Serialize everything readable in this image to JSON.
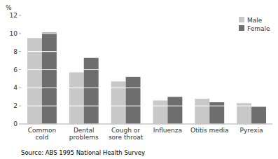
{
  "chart_data": {
    "type": "bar",
    "ylabel": "%",
    "categories": [
      "Common\ncold",
      "Dental\nproblems",
      "Cough or\nsore throat",
      "Influenza",
      "Otitis media",
      "Pyrexia"
    ],
    "series": [
      {
        "name": "Male",
        "color": "#c8c8c8",
        "values": [
          9.5,
          5.7,
          4.7,
          2.6,
          2.8,
          2.3
        ]
      },
      {
        "name": "Female",
        "color": "#6e6e6e",
        "values": [
          10.1,
          7.3,
          5.2,
          3.0,
          2.4,
          1.9
        ]
      }
    ],
    "ylim": [
      0,
      12
    ],
    "yticks": [
      0,
      2,
      4,
      6,
      8,
      10,
      12
    ],
    "grid": true,
    "legend": "upper right",
    "annotations": [
      "Source: ABS 1995 National Health Survey"
    ]
  }
}
